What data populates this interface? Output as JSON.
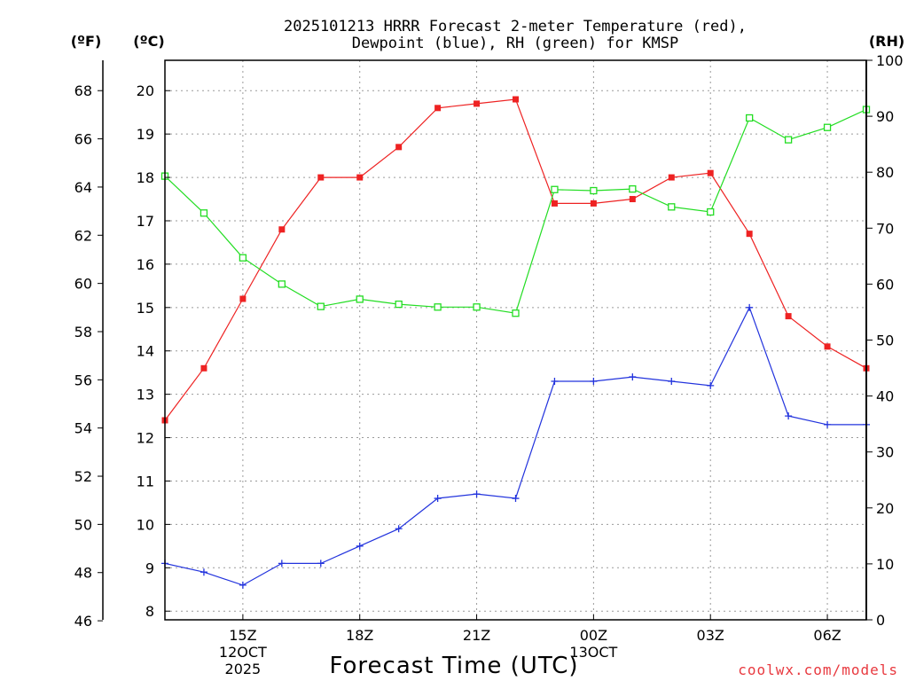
{
  "chart_data": {
    "type": "line",
    "title_lines": [
      "2025101213 HRRR Forecast 2-meter Temperature (red),",
      "Dewpoint (blue), RH (green) for KMSP"
    ],
    "xlabel": "Forecast Time (UTC)",
    "credit": "coolwx.com/models",
    "unit_labels": {
      "fahrenheit": "(ºF)",
      "celsius": "(ºC)",
      "rh": "(RH)"
    },
    "x_hours": [
      0,
      1,
      2,
      3,
      4,
      5,
      6,
      7,
      8,
      9,
      10,
      11,
      12,
      13,
      14,
      15,
      16,
      17,
      18
    ],
    "xlim": [
      0,
      18
    ],
    "x_ticks": [
      {
        "hour": 2,
        "lines": [
          "15Z",
          "12OCT",
          "2025"
        ]
      },
      {
        "hour": 5,
        "lines": [
          "18Z"
        ]
      },
      {
        "hour": 8,
        "lines": [
          "21Z"
        ]
      },
      {
        "hour": 11,
        "lines": [
          "00Z",
          "13OCT"
        ]
      },
      {
        "hour": 14,
        "lines": [
          "03Z"
        ]
      },
      {
        "hour": 17,
        "lines": [
          "06Z"
        ]
      }
    ],
    "celsius_axis": {
      "ylim": [
        7.8,
        20.7
      ],
      "ticks": [
        8,
        9,
        10,
        11,
        12,
        13,
        14,
        15,
        16,
        17,
        18,
        19,
        20
      ]
    },
    "fahrenheit_axis": {
      "ylim": [
        46.04,
        69.26
      ],
      "ticks": [
        46,
        48,
        50,
        52,
        54,
        56,
        58,
        60,
        62,
        64,
        66,
        68
      ]
    },
    "rh_axis": {
      "ylim": [
        0,
        100
      ],
      "ticks": [
        0,
        10,
        20,
        30,
        40,
        50,
        60,
        70,
        80,
        90,
        100
      ]
    },
    "series": [
      {
        "name": "2-meter Temperature",
        "unit": "C",
        "color": "#ee2222",
        "marker": "filled-square",
        "values": [
          12.4,
          13.6,
          15.2,
          16.8,
          18.0,
          18.0,
          18.7,
          19.6,
          19.7,
          19.8,
          17.4,
          17.4,
          17.5,
          18.0,
          18.1,
          16.7,
          14.8,
          14.1,
          13.6
        ]
      },
      {
        "name": "Dewpoint",
        "unit": "C",
        "color": "#2233dd",
        "marker": "plus",
        "values": [
          9.1,
          8.9,
          8.6,
          9.1,
          9.1,
          9.5,
          9.9,
          10.6,
          10.7,
          10.6,
          13.3,
          13.3,
          13.4,
          13.3,
          13.2,
          15.0,
          12.5,
          12.3,
          12.3
        ]
      },
      {
        "name": "RH",
        "unit": "%",
        "color": "#22dd22",
        "marker": "open-square",
        "values": [
          79.3,
          72.7,
          64.7,
          60.0,
          56.0,
          57.3,
          56.4,
          55.9,
          55.9,
          54.8,
          76.9,
          76.7,
          77.0,
          73.8,
          72.9,
          89.7,
          85.8,
          88.0,
          91.2
        ]
      }
    ]
  }
}
